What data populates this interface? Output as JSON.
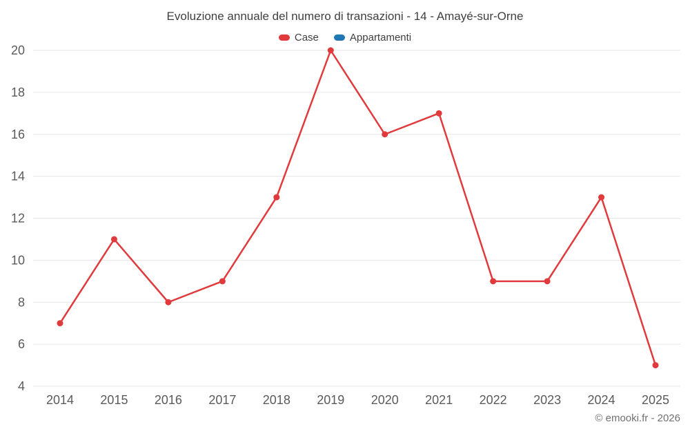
{
  "title": "Evoluzione annuale del numero di transazioni - 14 - Amayé-sur-Orne",
  "footer": "© emooki.fr - 2026",
  "colors": {
    "case_red": "#e13a3c",
    "appartamenti_blue": "#1f78b4",
    "grid": "#e6e6e6",
    "tick_text": "#5a5a5a"
  },
  "chart_data": {
    "type": "line",
    "title": "Evoluzione annuale del numero di transazioni - 14 - Amayé-sur-Orne",
    "x": [
      2014,
      2015,
      2016,
      2017,
      2018,
      2019,
      2020,
      2021,
      2022,
      2023,
      2024,
      2025
    ],
    "series": [
      {
        "name": "Case",
        "color": "#e13a3c",
        "values": [
          7,
          11,
          8,
          9,
          13,
          20,
          16,
          17,
          9,
          9,
          13,
          5
        ]
      },
      {
        "name": "Appartamenti",
        "color": "#1f78b4",
        "values": []
      }
    ],
    "xlabel": "",
    "ylabel": "",
    "ylim": [
      4,
      20
    ],
    "ytick_step": 2,
    "grid": true,
    "legend_position": "top"
  }
}
